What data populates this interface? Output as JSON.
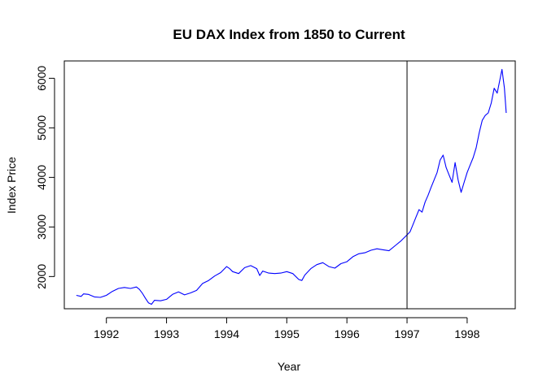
{
  "chart_data": {
    "type": "line",
    "title": "EU DAX Index from 1850 to Current",
    "xlabel": "Year",
    "ylabel": "Index Price",
    "xlim": [
      1991.3,
      1998.8
    ],
    "ylim": [
      1350,
      6350
    ],
    "x_ticks": [
      1992,
      1993,
      1994,
      1995,
      1996,
      1997,
      1998
    ],
    "x_tick_labels": [
      "1992",
      "1993",
      "1994",
      "1995",
      "1996",
      "1997",
      "1998"
    ],
    "y_ticks": [
      2000,
      3000,
      4000,
      5000,
      6000
    ],
    "y_tick_labels": [
      "2000",
      "3000",
      "4000",
      "5000",
      "6000"
    ],
    "vline_x": 1997,
    "grid": false,
    "legend": "none",
    "line_color": "#0000ff",
    "vline_color": "#000000",
    "series": [
      {
        "x": [
          1991.5,
          1991.58,
          1991.62,
          1991.7,
          1991.8,
          1991.9,
          1992.0,
          1992.1,
          1992.2,
          1992.3,
          1992.4,
          1992.5,
          1992.55,
          1992.6,
          1992.65,
          1992.7,
          1992.75,
          1992.8,
          1992.9,
          1993.0,
          1993.1,
          1993.2,
          1993.3,
          1993.4,
          1993.5,
          1993.6,
          1993.7,
          1993.8,
          1993.9,
          1994.0,
          1994.05,
          1994.1,
          1994.2,
          1994.3,
          1994.4,
          1994.5,
          1994.55,
          1994.6,
          1994.7,
          1994.8,
          1994.9,
          1995.0,
          1995.1,
          1995.2,
          1995.25,
          1995.3,
          1995.4,
          1995.5,
          1995.6,
          1995.7,
          1995.8,
          1995.9,
          1996.0,
          1996.1,
          1996.2,
          1996.3,
          1996.4,
          1996.5,
          1996.6,
          1996.7,
          1996.8,
          1996.9,
          1997.0,
          1997.05,
          1997.1,
          1997.15,
          1997.2,
          1997.25,
          1997.3,
          1997.35,
          1997.4,
          1997.45,
          1997.5,
          1997.55,
          1997.6,
          1997.65,
          1997.7,
          1997.75,
          1997.8,
          1997.85,
          1997.9,
          1997.95,
          1998.0,
          1998.05,
          1998.1,
          1998.15,
          1998.2,
          1998.25,
          1998.3,
          1998.35,
          1998.4,
          1998.45,
          1998.5,
          1998.55,
          1998.58,
          1998.62,
          1998.65
        ],
        "y": [
          1620,
          1600,
          1650,
          1640,
          1590,
          1580,
          1620,
          1700,
          1760,
          1780,
          1760,
          1790,
          1740,
          1660,
          1560,
          1470,
          1440,
          1520,
          1510,
          1540,
          1640,
          1690,
          1630,
          1670,
          1720,
          1860,
          1920,
          2010,
          2080,
          2200,
          2160,
          2100,
          2060,
          2180,
          2220,
          2160,
          2020,
          2110,
          2070,
          2060,
          2070,
          2100,
          2060,
          1940,
          1920,
          2030,
          2160,
          2240,
          2280,
          2200,
          2170,
          2260,
          2300,
          2400,
          2460,
          2480,
          2530,
          2560,
          2540,
          2520,
          2620,
          2720,
          2840,
          2900,
          3050,
          3200,
          3350,
          3300,
          3500,
          3640,
          3800,
          3950,
          4100,
          4350,
          4450,
          4200,
          4050,
          3900,
          4300,
          3950,
          3700,
          3900,
          4100,
          4250,
          4400,
          4600,
          4900,
          5150,
          5250,
          5300,
          5500,
          5800,
          5700,
          6000,
          6180,
          5800,
          5300
        ]
      }
    ]
  }
}
